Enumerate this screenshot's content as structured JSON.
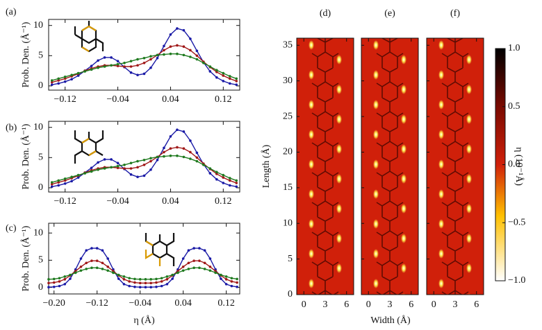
{
  "chart_data": [
    {
      "type": "line",
      "label": "(a)",
      "ylabel": "Prob. Den. (Å⁻¹)",
      "x": [
        -0.14,
        -0.13,
        -0.12,
        -0.11,
        -0.1,
        -0.09,
        -0.08,
        -0.07,
        -0.06,
        -0.05,
        -0.04,
        -0.03,
        -0.02,
        -0.01,
        0,
        0.01,
        0.02,
        0.03,
        0.04,
        0.05,
        0.06,
        0.07,
        0.08,
        0.09,
        0.1,
        0.11,
        0.12,
        0.13,
        0.14
      ],
      "xlim": [
        -0.145,
        0.145
      ],
      "xticks": [
        {
          "value": -0.12,
          "label": "−0.12"
        },
        {
          "value": -0.04,
          "label": "−0.04"
        },
        0.04,
        0.12
      ],
      "ylim": [
        -0.7,
        11
      ],
      "yticks": [
        0,
        5,
        10
      ],
      "series": [
        {
          "color": "#1a1aa6",
          "values": [
            0.2,
            0.4,
            0.7,
            1.1,
            1.7,
            2.5,
            3.3,
            4.2,
            4.7,
            4.7,
            4.1,
            3.1,
            2.2,
            1.8,
            2.0,
            3.0,
            4.6,
            6.6,
            8.5,
            9.5,
            9.2,
            7.8,
            5.8,
            3.9,
            2.4,
            1.4,
            0.8,
            0.4,
            0.2
          ]
        },
        {
          "color": "#a01818",
          "values": [
            0.6,
            0.9,
            1.2,
            1.6,
            2.0,
            2.5,
            2.9,
            3.2,
            3.4,
            3.4,
            3.3,
            3.2,
            3.2,
            3.4,
            3.8,
            4.4,
            5.1,
            5.9,
            6.5,
            6.7,
            6.5,
            5.9,
            5.0,
            4.0,
            3.1,
            2.3,
            1.7,
            1.2,
            0.8
          ]
        },
        {
          "color": "#1f7a1f",
          "values": [
            0.9,
            1.2,
            1.5,
            1.8,
            2.1,
            2.4,
            2.7,
            3.0,
            3.2,
            3.4,
            3.6,
            3.8,
            4.1,
            4.4,
            4.6,
            4.9,
            5.1,
            5.2,
            5.3,
            5.3,
            5.1,
            4.8,
            4.4,
            3.8,
            3.2,
            2.6,
            2.1,
            1.6,
            1.2
          ]
        }
      ]
    },
    {
      "type": "line",
      "label": "(b)",
      "ylabel": "Prob. Den. (Å⁻¹)",
      "x": [
        -0.14,
        -0.13,
        -0.12,
        -0.11,
        -0.1,
        -0.09,
        -0.08,
        -0.07,
        -0.06,
        -0.05,
        -0.04,
        -0.03,
        -0.02,
        -0.01,
        0,
        0.01,
        0.02,
        0.03,
        0.04,
        0.05,
        0.06,
        0.07,
        0.08,
        0.09,
        0.1,
        0.11,
        0.12,
        0.13,
        0.14
      ],
      "xlim": [
        -0.145,
        0.145
      ],
      "xticks": [
        {
          "value": -0.12,
          "label": "−0.12"
        },
        {
          "value": -0.04,
          "label": "−0.04"
        },
        0.04,
        0.12
      ],
      "ylim": [
        -0.7,
        11
      ],
      "yticks": [
        0,
        5,
        10
      ],
      "series": [
        {
          "color": "#1a1aa6",
          "values": [
            0.2,
            0.4,
            0.7,
            1.1,
            1.7,
            2.5,
            3.3,
            4.2,
            4.7,
            4.7,
            4.1,
            3.1,
            2.2,
            1.8,
            2.0,
            3.0,
            4.6,
            6.6,
            8.5,
            9.6,
            9.3,
            7.8,
            5.8,
            3.9,
            2.4,
            1.4,
            0.8,
            0.4,
            0.2
          ]
        },
        {
          "color": "#a01818",
          "values": [
            0.6,
            0.9,
            1.2,
            1.6,
            2.0,
            2.5,
            2.9,
            3.2,
            3.4,
            3.4,
            3.3,
            3.2,
            3.2,
            3.4,
            3.8,
            4.4,
            5.1,
            5.9,
            6.5,
            6.7,
            6.5,
            5.9,
            5.0,
            4.0,
            3.1,
            2.3,
            1.7,
            1.2,
            0.8
          ]
        },
        {
          "color": "#1f7a1f",
          "values": [
            0.9,
            1.2,
            1.5,
            1.8,
            2.1,
            2.4,
            2.7,
            3.0,
            3.2,
            3.4,
            3.6,
            3.8,
            4.1,
            4.4,
            4.6,
            4.9,
            5.1,
            5.2,
            5.3,
            5.3,
            5.1,
            4.8,
            4.4,
            3.8,
            3.2,
            2.6,
            2.1,
            1.6,
            1.2
          ]
        }
      ]
    },
    {
      "type": "line",
      "label": "(c)",
      "ylabel": "Prob. Den. (Å⁻¹)",
      "xlabel": "η  (Å)",
      "x": [
        -0.21,
        -0.2,
        -0.19,
        -0.18,
        -0.17,
        -0.16,
        -0.15,
        -0.14,
        -0.13,
        -0.12,
        -0.11,
        -0.1,
        -0.09,
        -0.08,
        -0.07,
        -0.06,
        -0.05,
        -0.04,
        -0.03,
        -0.02,
        -0.01,
        0,
        0.01,
        0.02,
        0.03,
        0.04,
        0.05,
        0.06,
        0.07,
        0.08,
        0.09,
        0.1,
        0.11,
        0.12,
        0.13,
        0.14
      ],
      "xlim": [
        -0.21,
        0.145
      ],
      "xticks": [
        {
          "value": -0.2,
          "label": "−0.20"
        },
        {
          "value": -0.12,
          "label": "−0.12"
        },
        {
          "value": -0.04,
          "label": "−0.04"
        },
        0.04,
        0.12
      ],
      "ylim": [
        -1.2,
        11.8
      ],
      "yticks": [
        0,
        5,
        10
      ],
      "series": [
        {
          "color": "#1a1aa6",
          "values": [
            0.05,
            0.1,
            0.25,
            0.6,
            1.6,
            3.3,
            5.3,
            6.8,
            7.2,
            7.2,
            6.8,
            5.3,
            3.3,
            1.6,
            0.6,
            0.25,
            0.1,
            0.05,
            0.05,
            0.05,
            0.1,
            0.25,
            0.6,
            1.6,
            3.3,
            5.3,
            6.8,
            7.2,
            7.2,
            6.8,
            5.3,
            3.3,
            1.6,
            0.6,
            0.25,
            0.1
          ]
        },
        {
          "color": "#a01818",
          "values": [
            0.8,
            0.9,
            1.1,
            1.5,
            2.2,
            3.0,
            3.8,
            4.5,
            4.9,
            4.9,
            4.5,
            3.8,
            3.0,
            2.2,
            1.5,
            1.1,
            0.9,
            0.8,
            0.8,
            0.8,
            0.9,
            1.1,
            1.5,
            2.2,
            3.0,
            3.8,
            4.5,
            4.9,
            4.9,
            4.5,
            3.8,
            3.0,
            2.2,
            1.5,
            1.1,
            0.9
          ]
        },
        {
          "color": "#1f7a1f",
          "values": [
            1.5,
            1.55,
            1.7,
            2.0,
            2.3,
            2.7,
            3.1,
            3.4,
            3.6,
            3.6,
            3.4,
            3.1,
            2.7,
            2.3,
            2.0,
            1.7,
            1.55,
            1.5,
            1.5,
            1.5,
            1.55,
            1.7,
            2.0,
            2.3,
            2.7,
            3.1,
            3.4,
            3.6,
            3.6,
            3.4,
            3.1,
            2.7,
            2.3,
            2.0,
            1.7,
            1.55
          ]
        }
      ]
    },
    {
      "type": "heatmap",
      "panels": [
        "(d)",
        "(e)",
        "(f)"
      ],
      "xlabel": "Width (Å)",
      "ylabel": "Length (Å)",
      "xlim": [
        -1,
        7
      ],
      "xticks": [
        0,
        3,
        6
      ],
      "ylim": [
        0,
        36
      ],
      "yticks": [
        0,
        5,
        10,
        15,
        20,
        25,
        30,
        35
      ],
      "colorbar": {
        "label": "η (10⁻¹Å)",
        "lim": [
          -1,
          1
        ],
        "ticks": [
          {
            "value": -1,
            "label": "−1.0"
          },
          {
            "value": -0.5,
            "label": "−0.5"
          },
          {
            "value": 0,
            "label": "0.0"
          },
          {
            "value": 0.5,
            "label": "0.5"
          },
          {
            "value": 1,
            "label": "1.0"
          }
        ]
      }
    }
  ]
}
